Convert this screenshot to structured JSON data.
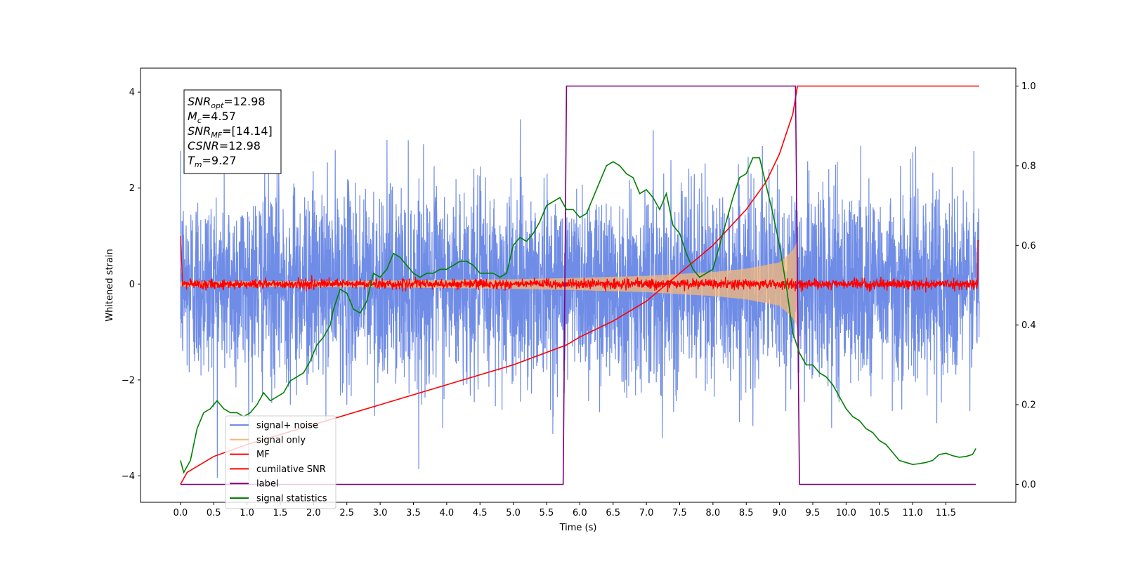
{
  "chart_data": {
    "type": "line",
    "xlabel": "Time (s)",
    "ylabel": "Whitened strain",
    "xlim": [
      -0.6,
      12.55
    ],
    "ylim": [
      -4.55,
      4.5
    ],
    "y2lim": [
      -0.045,
      1.045
    ],
    "xticks": [
      "0.0",
      "0.5",
      "1.0",
      "1.5",
      "2.0",
      "2.5",
      "3.0",
      "3.5",
      "4.0",
      "4.5",
      "5.0",
      "5.5",
      "6.0",
      "6.5",
      "7.0",
      "7.5",
      "8.0",
      "8.5",
      "9.0",
      "9.5",
      "10.0",
      "10.5",
      "11.0",
      "11.5"
    ],
    "yticks": [
      "4",
      "2",
      "0",
      "−2",
      "−4"
    ],
    "yticks_values": [
      4,
      2,
      0,
      -2,
      -4
    ],
    "y2ticks": [
      "1.0",
      "0.8",
      "0.6",
      "0.4",
      "0.2",
      "0.0"
    ],
    "y2ticks_values": [
      1.0,
      0.8,
      0.6,
      0.4,
      0.2,
      0.0
    ],
    "annotations": [
      {
        "base": "SNR",
        "sub": "opt",
        "value": "=12.98"
      },
      {
        "base": "M",
        "sub": "c",
        "value": "=4.57"
      },
      {
        "base": "SNR",
        "sub": "MF",
        "value": "=[14.14]"
      },
      {
        "base": "CSNR",
        "sub": "",
        "value": "=12.98"
      },
      {
        "base": "T",
        "sub": "m",
        "value": "=9.27"
      }
    ],
    "legend_position": "lower-left",
    "series": [
      {
        "name": "signal+ noise",
        "color": "#6f8ce6",
        "axis": "left",
        "kind": "noise",
        "x_range": [
          0.0,
          12.0
        ],
        "amplitude_std": 1.0
      },
      {
        "name": "signal only",
        "color": "#f5b87a",
        "axis": "left",
        "kind": "chirp_band",
        "x_range": [
          0.0,
          9.27
        ],
        "envelope_x": [
          0.0,
          3.0,
          5.0,
          6.0,
          7.0,
          8.0,
          8.5,
          9.0,
          9.2,
          9.27
        ],
        "envelope_y": [
          0.05,
          0.07,
          0.1,
          0.13,
          0.17,
          0.25,
          0.32,
          0.45,
          0.7,
          0.9
        ]
      },
      {
        "name": "MF",
        "color": "#ff0000",
        "axis": "left",
        "kind": "noise_small",
        "x_range": [
          0.0,
          12.0
        ],
        "amplitude_std": 0.05
      },
      {
        "name": "cumilative SNR",
        "color": "#ff0000",
        "axis": "right",
        "x": [
          0.0,
          0.1,
          0.5,
          1.0,
          2.0,
          3.0,
          4.0,
          5.0,
          5.8,
          6.0,
          6.5,
          7.0,
          7.5,
          8.0,
          8.5,
          8.8,
          9.0,
          9.1,
          9.2,
          9.27,
          12.0
        ],
        "y": [
          0.0,
          0.03,
          0.07,
          0.1,
          0.15,
          0.2,
          0.25,
          0.3,
          0.35,
          0.37,
          0.41,
          0.46,
          0.53,
          0.6,
          0.69,
          0.76,
          0.83,
          0.88,
          0.93,
          1.0,
          1.0
        ]
      },
      {
        "name": "label",
        "color": "#800080",
        "axis": "right",
        "x": [
          0.0,
          5.75,
          5.8,
          9.24,
          9.3,
          11.95
        ],
        "y": [
          0.0,
          0.0,
          1.0,
          1.0,
          0.0,
          0.0
        ]
      },
      {
        "name": "signal statistics",
        "color": "#008000",
        "axis": "right",
        "x": [
          0.0,
          0.05,
          0.15,
          0.25,
          0.35,
          0.45,
          0.55,
          0.65,
          0.75,
          0.85,
          0.95,
          1.05,
          1.15,
          1.25,
          1.35,
          1.45,
          1.55,
          1.65,
          1.75,
          1.85,
          1.95,
          2.05,
          2.15,
          2.25,
          2.3,
          2.4,
          2.5,
          2.6,
          2.7,
          2.8,
          2.9,
          3.0,
          3.1,
          3.2,
          3.3,
          3.4,
          3.5,
          3.6,
          3.7,
          3.8,
          3.9,
          4.0,
          4.1,
          4.2,
          4.3,
          4.4,
          4.5,
          4.6,
          4.7,
          4.8,
          4.9,
          5.0,
          5.1,
          5.2,
          5.3,
          5.4,
          5.5,
          5.6,
          5.7,
          5.8,
          5.9,
          6.0,
          6.1,
          6.2,
          6.3,
          6.4,
          6.5,
          6.6,
          6.7,
          6.8,
          6.9,
          7.0,
          7.1,
          7.2,
          7.3,
          7.4,
          7.5,
          7.6,
          7.7,
          7.8,
          7.9,
          8.0,
          8.1,
          8.2,
          8.3,
          8.4,
          8.5,
          8.6,
          8.7,
          8.8,
          8.9,
          9.0,
          9.1,
          9.2,
          9.3,
          9.4,
          9.5,
          9.6,
          9.7,
          9.8,
          9.9,
          10.0,
          10.1,
          10.2,
          10.3,
          10.4,
          10.5,
          10.6,
          10.7,
          10.8,
          10.9,
          11.0,
          11.1,
          11.2,
          11.3,
          11.4,
          11.5,
          11.6,
          11.7,
          11.8,
          11.9,
          11.95
        ],
        "y": [
          0.06,
          0.03,
          0.06,
          0.14,
          0.18,
          0.19,
          0.21,
          0.19,
          0.18,
          0.18,
          0.17,
          0.18,
          0.2,
          0.23,
          0.21,
          0.22,
          0.23,
          0.26,
          0.27,
          0.28,
          0.31,
          0.35,
          0.37,
          0.4,
          0.44,
          0.49,
          0.48,
          0.44,
          0.43,
          0.46,
          0.53,
          0.52,
          0.54,
          0.58,
          0.57,
          0.55,
          0.53,
          0.52,
          0.53,
          0.53,
          0.54,
          0.54,
          0.55,
          0.56,
          0.56,
          0.55,
          0.53,
          0.53,
          0.53,
          0.52,
          0.53,
          0.6,
          0.62,
          0.61,
          0.63,
          0.66,
          0.7,
          0.71,
          0.72,
          0.69,
          0.69,
          0.67,
          0.68,
          0.72,
          0.76,
          0.8,
          0.81,
          0.8,
          0.78,
          0.77,
          0.73,
          0.74,
          0.72,
          0.69,
          0.73,
          0.65,
          0.63,
          0.58,
          0.54,
          0.52,
          0.53,
          0.54,
          0.6,
          0.66,
          0.72,
          0.77,
          0.78,
          0.82,
          0.82,
          0.75,
          0.68,
          0.6,
          0.5,
          0.38,
          0.33,
          0.3,
          0.3,
          0.28,
          0.27,
          0.25,
          0.22,
          0.19,
          0.17,
          0.16,
          0.14,
          0.13,
          0.11,
          0.1,
          0.08,
          0.06,
          0.055,
          0.05,
          0.052,
          0.055,
          0.06,
          0.075,
          0.078,
          0.072,
          0.068,
          0.07,
          0.075,
          0.09
        ]
      }
    ]
  }
}
